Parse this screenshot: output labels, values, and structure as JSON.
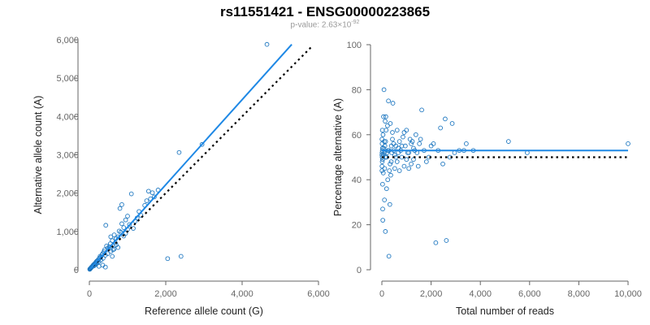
{
  "title": "rs11551421 - ENSG00000223865",
  "subtitle": {
    "prefix": "p-value: 2.63×10",
    "exponent": "-92"
  },
  "colors": {
    "points": "#1f78c1",
    "fit": "#1e88e5",
    "reference": "#000000",
    "axis": "#666666"
  },
  "chart_data": [
    {
      "type": "scatter",
      "xlabel": "Reference allele count (G)",
      "ylabel": "Alternative allele count (A)",
      "xlim": [
        0,
        6000
      ],
      "ylim": [
        0,
        6000
      ],
      "xticks": [
        "0",
        "2,000",
        "4,000",
        "6,000"
      ],
      "yticks": [
        "0",
        "1,000",
        "2,000",
        "3,000",
        "4,000",
        "5,000",
        "6,000"
      ],
      "fit_line": {
        "x": [
          0,
          5300
        ],
        "y": [
          0,
          5880
        ]
      },
      "reference_line": {
        "x": [
          0,
          5850
        ],
        "y": [
          0,
          5850
        ]
      },
      "points": [
        [
          4650,
          5880
        ],
        [
          2950,
          3270
        ],
        [
          2350,
          3060
        ],
        [
          2050,
          290
        ],
        [
          2400,
          350
        ],
        [
          1650,
          2010
        ],
        [
          1550,
          2050
        ],
        [
          1800,
          2080
        ],
        [
          1100,
          1980
        ],
        [
          1450,
          1680
        ],
        [
          1500,
          1800
        ],
        [
          1600,
          1850
        ],
        [
          1300,
          1520
        ],
        [
          1200,
          1270
        ],
        [
          1000,
          1400
        ],
        [
          950,
          1300
        ],
        [
          850,
          1200
        ],
        [
          800,
          1600
        ],
        [
          850,
          1700
        ],
        [
          900,
          1100
        ],
        [
          1000,
          1050
        ],
        [
          950,
          950
        ],
        [
          820,
          980
        ],
        [
          750,
          860
        ],
        [
          700,
          820
        ],
        [
          680,
          700
        ],
        [
          600,
          760
        ],
        [
          550,
          680
        ],
        [
          520,
          600
        ],
        [
          480,
          560
        ],
        [
          450,
          620
        ],
        [
          430,
          1160
        ],
        [
          400,
          520
        ],
        [
          380,
          470
        ],
        [
          350,
          420
        ],
        [
          330,
          390
        ],
        [
          300,
          330
        ],
        [
          280,
          350
        ],
        [
          260,
          300
        ],
        [
          240,
          270
        ],
        [
          220,
          240
        ],
        [
          200,
          230
        ],
        [
          180,
          210
        ],
        [
          160,
          180
        ],
        [
          150,
          160
        ],
        [
          130,
          150
        ],
        [
          110,
          130
        ],
        [
          100,
          120
        ],
        [
          90,
          100
        ],
        [
          80,
          90
        ],
        [
          70,
          80
        ],
        [
          60,
          70
        ],
        [
          50,
          60
        ],
        [
          40,
          45
        ],
        [
          30,
          35
        ],
        [
          20,
          25
        ],
        [
          15,
          18
        ],
        [
          10,
          12
        ],
        [
          600,
          350
        ],
        [
          700,
          650
        ],
        [
          750,
          580
        ],
        [
          650,
          540
        ],
        [
          350,
          120
        ],
        [
          420,
          70
        ],
        [
          250,
          90
        ],
        [
          1250,
          1350
        ],
        [
          1350,
          1420
        ],
        [
          1150,
          1080
        ],
        [
          900,
          880
        ],
        [
          620,
          520
        ],
        [
          560,
          480
        ],
        [
          480,
          420
        ],
        [
          420,
          380
        ],
        [
          360,
          300
        ],
        [
          300,
          250
        ],
        [
          250,
          210
        ],
        [
          200,
          170
        ],
        [
          170,
          140
        ],
        [
          140,
          130
        ],
        [
          120,
          100
        ],
        [
          560,
          860
        ],
        [
          650,
          910
        ],
        [
          780,
          1010
        ],
        [
          1050,
          1180
        ],
        [
          1700,
          1900
        ]
      ]
    },
    {
      "type": "scatter",
      "xlabel": "Total number of reads",
      "ylabel": "Percentage alternative (A)",
      "xlim": [
        0,
        10500
      ],
      "ylim": [
        0,
        100
      ],
      "xticks": [
        "0",
        "2,000",
        "4,000",
        "6,000",
        "8,000",
        "10,000"
      ],
      "yticks": [
        "0",
        "20",
        "40",
        "60",
        "80",
        "100"
      ],
      "fit_line": {
        "x": [
          0,
          10500
        ],
        "y": [
          53,
          53
        ]
      },
      "reference_line": {
        "x": [
          0,
          10500
        ],
        "y": [
          50,
          50
        ]
      },
      "points": [
        [
          10500,
          56
        ],
        [
          6200,
          52
        ],
        [
          5400,
          57
        ],
        [
          3900,
          53
        ],
        [
          3600,
          56
        ],
        [
          3500,
          53
        ],
        [
          3300,
          53
        ],
        [
          3100,
          52
        ],
        [
          3000,
          65
        ],
        [
          2700,
          67
        ],
        [
          2900,
          50
        ],
        [
          2600,
          47
        ],
        [
          2500,
          63
        ],
        [
          2400,
          53
        ],
        [
          2300,
          12
        ],
        [
          2750,
          13
        ],
        [
          2200,
          56
        ],
        [
          2100,
          55
        ],
        [
          2000,
          50
        ],
        [
          1900,
          48
        ],
        [
          1800,
          53
        ],
        [
          1700,
          71
        ],
        [
          1650,
          58
        ],
        [
          1600,
          56
        ],
        [
          1550,
          46
        ],
        [
          1500,
          52
        ],
        [
          1450,
          60
        ],
        [
          1400,
          53
        ],
        [
          1350,
          49
        ],
        [
          1300,
          57
        ],
        [
          1250,
          56
        ],
        [
          1200,
          58
        ],
        [
          1150,
          45
        ],
        [
          1100,
          52
        ],
        [
          1050,
          62
        ],
        [
          1000,
          55
        ],
        [
          950,
          61
        ],
        [
          900,
          59
        ],
        [
          850,
          50
        ],
        [
          800,
          53
        ],
        [
          750,
          57
        ],
        [
          700,
          54
        ],
        [
          650,
          62
        ],
        [
          600,
          50
        ],
        [
          550,
          45
        ],
        [
          500,
          56
        ],
        [
          470,
          74
        ],
        [
          450,
          61
        ],
        [
          420,
          52
        ],
        [
          400,
          48
        ],
        [
          380,
          42
        ],
        [
          360,
          65
        ],
        [
          340,
          29
        ],
        [
          320,
          44
        ],
        [
          300,
          6
        ],
        [
          280,
          75
        ],
        [
          260,
          53
        ],
        [
          240,
          64
        ],
        [
          220,
          52
        ],
        [
          200,
          36
        ],
        [
          180,
          62
        ],
        [
          170,
          68
        ],
        [
          160,
          57
        ],
        [
          150,
          50
        ],
        [
          140,
          66
        ],
        [
          130,
          55
        ],
        [
          120,
          45
        ],
        [
          110,
          31
        ],
        [
          100,
          57
        ],
        [
          90,
          80
        ],
        [
          80,
          54
        ],
        [
          70,
          68
        ],
        [
          60,
          43
        ],
        [
          50,
          60
        ],
        [
          40,
          22
        ],
        [
          35,
          27
        ],
        [
          30,
          38
        ],
        [
          25,
          54
        ],
        [
          20,
          62
        ],
        [
          15,
          48
        ],
        [
          12,
          50
        ],
        [
          10,
          56
        ],
        [
          8,
          52
        ],
        [
          6,
          46
        ],
        [
          5,
          44
        ],
        [
          4,
          58
        ],
        [
          3,
          51
        ],
        [
          150,
          17
        ],
        [
          250,
          40
        ],
        [
          350,
          47
        ],
        [
          450,
          58
        ],
        [
          550,
          51
        ],
        [
          650,
          48
        ],
        [
          750,
          44
        ],
        [
          850,
          55
        ],
        [
          950,
          46
        ],
        [
          1050,
          49
        ],
        [
          1150,
          52
        ],
        [
          1250,
          47
        ],
        [
          1350,
          54
        ],
        [
          700,
          52
        ],
        [
          600,
          55
        ],
        [
          500,
          53
        ],
        [
          400,
          55
        ],
        [
          300,
          53
        ],
        [
          200,
          50
        ],
        [
          100,
          52
        ],
        [
          60,
          51
        ],
        [
          30,
          49
        ],
        [
          20,
          53
        ]
      ]
    }
  ]
}
